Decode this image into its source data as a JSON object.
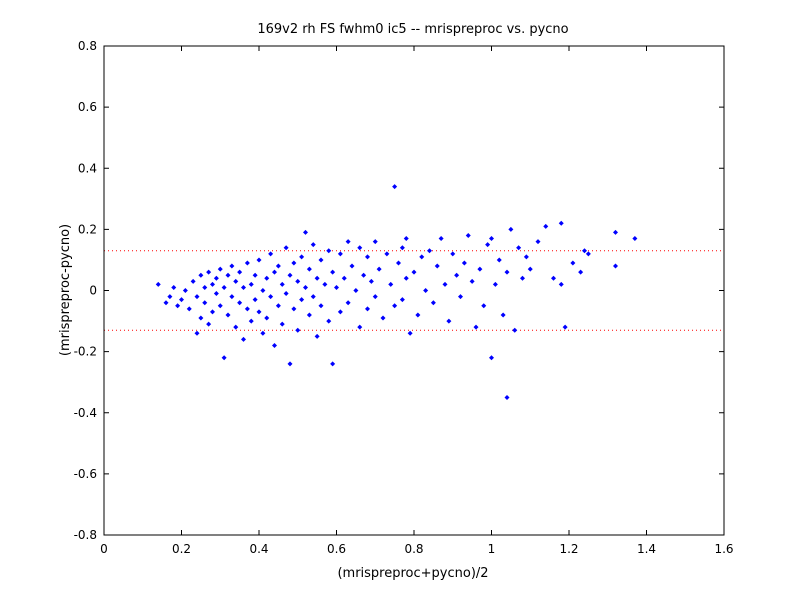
{
  "chart_data": {
    "type": "scatter",
    "title": "169v2 rh FS fwhm0 ic5 -- mrispreproc vs. pycno",
    "xlabel": "(mrispreproc+pycno)/2",
    "ylabel": "(mrispreproc-pycno)",
    "xlim": [
      0,
      1.6
    ],
    "ylim": [
      -0.8,
      0.8
    ],
    "xticks": [
      "0",
      "0.2",
      "0.4",
      "0.6",
      "0.8",
      "1",
      "1.2",
      "1.4",
      "1.6"
    ],
    "yticks": [
      "-0.8",
      "-0.6",
      "-0.4",
      "-0.2",
      "0",
      "0.2",
      "0.4",
      "0.6",
      "0.8"
    ],
    "grid": false,
    "marker_color": "#0000ff",
    "limit_line_color": "#ff0000",
    "limit_lines": [
      0.13,
      -0.13
    ],
    "points": [
      [
        0.14,
        0.02
      ],
      [
        0.16,
        -0.04
      ],
      [
        0.17,
        -0.02
      ],
      [
        0.18,
        0.01
      ],
      [
        0.19,
        -0.05
      ],
      [
        0.2,
        -0.03
      ],
      [
        0.21,
        0.0
      ],
      [
        0.22,
        -0.06
      ],
      [
        0.23,
        0.03
      ],
      [
        0.24,
        -0.14
      ],
      [
        0.24,
        -0.02
      ],
      [
        0.25,
        0.05
      ],
      [
        0.25,
        -0.09
      ],
      [
        0.26,
        0.01
      ],
      [
        0.26,
        -0.04
      ],
      [
        0.27,
        0.06
      ],
      [
        0.27,
        -0.11
      ],
      [
        0.28,
        0.02
      ],
      [
        0.28,
        -0.07
      ],
      [
        0.29,
        0.04
      ],
      [
        0.29,
        -0.01
      ],
      [
        0.3,
        0.07
      ],
      [
        0.3,
        -0.05
      ],
      [
        0.31,
        -0.22
      ],
      [
        0.31,
        0.01
      ],
      [
        0.32,
        0.05
      ],
      [
        0.32,
        -0.08
      ],
      [
        0.33,
        0.08
      ],
      [
        0.33,
        -0.02
      ],
      [
        0.34,
        0.03
      ],
      [
        0.34,
        -0.12
      ],
      [
        0.35,
        0.06
      ],
      [
        0.35,
        -0.04
      ],
      [
        0.36,
        0.01
      ],
      [
        0.36,
        -0.16
      ],
      [
        0.37,
        0.09
      ],
      [
        0.37,
        -0.06
      ],
      [
        0.38,
        0.02
      ],
      [
        0.38,
        -0.1
      ],
      [
        0.39,
        0.05
      ],
      [
        0.39,
        -0.03
      ],
      [
        0.4,
        0.1
      ],
      [
        0.4,
        -0.07
      ],
      [
        0.41,
        0.0
      ],
      [
        0.41,
        -0.14
      ],
      [
        0.42,
        0.04
      ],
      [
        0.42,
        -0.09
      ],
      [
        0.43,
        0.12
      ],
      [
        0.43,
        -0.02
      ],
      [
        0.44,
        0.06
      ],
      [
        0.44,
        -0.18
      ],
      [
        0.45,
        0.08
      ],
      [
        0.45,
        -0.05
      ],
      [
        0.46,
        0.02
      ],
      [
        0.46,
        -0.11
      ],
      [
        0.47,
        0.14
      ],
      [
        0.47,
        -0.01
      ],
      [
        0.48,
        0.05
      ],
      [
        0.48,
        -0.24
      ],
      [
        0.49,
        0.09
      ],
      [
        0.49,
        -0.06
      ],
      [
        0.5,
        0.03
      ],
      [
        0.5,
        -0.13
      ],
      [
        0.51,
        0.11
      ],
      [
        0.51,
        -0.03
      ],
      [
        0.52,
        0.19
      ],
      [
        0.52,
        0.01
      ],
      [
        0.53,
        0.07
      ],
      [
        0.53,
        -0.08
      ],
      [
        0.54,
        0.15
      ],
      [
        0.54,
        -0.02
      ],
      [
        0.55,
        0.04
      ],
      [
        0.55,
        -0.15
      ],
      [
        0.56,
        0.1
      ],
      [
        0.56,
        -0.05
      ],
      [
        0.57,
        0.02
      ],
      [
        0.58,
        0.13
      ],
      [
        0.58,
        -0.1
      ],
      [
        0.59,
        -0.24
      ],
      [
        0.59,
        0.06
      ],
      [
        0.6,
        0.01
      ],
      [
        0.61,
        0.12
      ],
      [
        0.61,
        -0.07
      ],
      [
        0.62,
        0.04
      ],
      [
        0.63,
        0.16
      ],
      [
        0.63,
        -0.04
      ],
      [
        0.64,
        0.08
      ],
      [
        0.65,
        0.0
      ],
      [
        0.66,
        0.14
      ],
      [
        0.66,
        -0.12
      ],
      [
        0.67,
        0.05
      ],
      [
        0.68,
        0.11
      ],
      [
        0.68,
        -0.06
      ],
      [
        0.69,
        0.03
      ],
      [
        0.7,
        0.16
      ],
      [
        0.7,
        -0.02
      ],
      [
        0.71,
        0.07
      ],
      [
        0.72,
        -0.09
      ],
      [
        0.73,
        0.12
      ],
      [
        0.74,
        0.02
      ],
      [
        0.75,
        0.34
      ],
      [
        0.75,
        -0.05
      ],
      [
        0.76,
        0.09
      ],
      [
        0.77,
        0.14
      ],
      [
        0.77,
        -0.03
      ],
      [
        0.78,
        0.17
      ],
      [
        0.78,
        0.04
      ],
      [
        0.79,
        -0.14
      ],
      [
        0.8,
        0.06
      ],
      [
        0.81,
        -0.08
      ],
      [
        0.82,
        0.11
      ],
      [
        0.83,
        0.0
      ],
      [
        0.84,
        0.13
      ],
      [
        0.85,
        -0.04
      ],
      [
        0.86,
        0.08
      ],
      [
        0.87,
        0.17
      ],
      [
        0.88,
        0.02
      ],
      [
        0.89,
        -0.1
      ],
      [
        0.9,
        0.12
      ],
      [
        0.91,
        0.05
      ],
      [
        0.92,
        -0.02
      ],
      [
        0.93,
        0.09
      ],
      [
        0.94,
        0.18
      ],
      [
        0.95,
        0.03
      ],
      [
        0.96,
        -0.12
      ],
      [
        0.97,
        0.07
      ],
      [
        0.98,
        -0.05
      ],
      [
        0.99,
        0.15
      ],
      [
        1.0,
        0.17
      ],
      [
        1.0,
        -0.22
      ],
      [
        1.01,
        0.02
      ],
      [
        1.02,
        0.1
      ],
      [
        1.03,
        -0.08
      ],
      [
        1.04,
        0.06
      ],
      [
        1.04,
        -0.35
      ],
      [
        1.05,
        0.2
      ],
      [
        1.06,
        -0.13
      ],
      [
        1.07,
        0.14
      ],
      [
        1.08,
        0.04
      ],
      [
        1.09,
        0.11
      ],
      [
        1.1,
        0.07
      ],
      [
        1.12,
        0.16
      ],
      [
        1.14,
        0.21
      ],
      [
        1.16,
        0.04
      ],
      [
        1.18,
        0.22
      ],
      [
        1.18,
        0.02
      ],
      [
        1.19,
        -0.12
      ],
      [
        1.21,
        0.09
      ],
      [
        1.23,
        0.06
      ],
      [
        1.24,
        0.13
      ],
      [
        1.25,
        0.12
      ],
      [
        1.32,
        0.19
      ],
      [
        1.32,
        0.08
      ],
      [
        1.37,
        0.17
      ]
    ]
  }
}
